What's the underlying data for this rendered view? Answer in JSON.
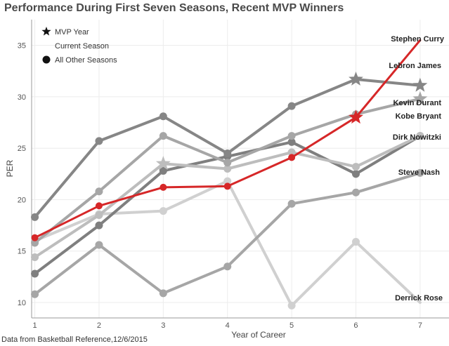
{
  "title": "Performance During First Seven Seasons, Recent MVP Winners",
  "source": "Data from Basketball Reference,12/6/2015",
  "chart_data": {
    "type": "line",
    "xlabel": "Year of Career",
    "ylabel": "PER",
    "x": [
      1,
      2,
      3,
      4,
      5,
      6,
      7
    ],
    "xlim": [
      0.95,
      7.45
    ],
    "ylim": [
      8.5,
      37.5
    ],
    "yticks": [
      10,
      15,
      20,
      25,
      30,
      35
    ],
    "grid": true,
    "legend_position": "top-left",
    "legend": [
      {
        "key": "mvp",
        "label": "MVP Year",
        "marker": "star"
      },
      {
        "key": "current",
        "label": "Current Season",
        "marker": "none"
      },
      {
        "key": "other",
        "label": "All Other Seasons",
        "marker": "circle"
      }
    ],
    "colors": {
      "highlight": "#d62728",
      "dark": "#7f7f7f",
      "mid": "#a6a6a6",
      "light": "#cfcfcf"
    },
    "series": [
      {
        "name": "Stephen Curry",
        "color": "#d62728",
        "values": [
          16.3,
          19.4,
          21.2,
          21.3,
          24.1,
          28.0,
          35.5
        ],
        "mvp": [
          6
        ],
        "current": [
          7
        ]
      },
      {
        "name": "Lebron James",
        "color": "#868686",
        "values": [
          18.3,
          25.7,
          28.1,
          24.5,
          29.1,
          31.7,
          31.1
        ],
        "mvp": [
          6,
          7
        ]
      },
      {
        "name": "Kevin Durant",
        "color": "#a6a6a6",
        "values": [
          15.8,
          20.8,
          26.2,
          23.6,
          26.2,
          28.3,
          29.8
        ],
        "mvp": [
          7
        ]
      },
      {
        "name": "Kobe Bryant",
        "color": "#bdbdbd",
        "values": [
          14.4,
          18.5,
          23.5,
          23.0,
          24.6,
          23.2,
          26.2
        ],
        "mvp": [
          3
        ]
      },
      {
        "name": "Dirk Nowitzki",
        "color": "#7f7f7f",
        "values": [
          12.8,
          17.5,
          22.8,
          24.2,
          25.6,
          22.5,
          26.2
        ],
        "mvp": []
      },
      {
        "name": "Steve Nash",
        "color": "#a6a6a6",
        "values": [
          10.8,
          15.6,
          10.9,
          13.5,
          19.6,
          20.7,
          22.6
        ],
        "mvp": []
      },
      {
        "name": "Derrick Rose",
        "color": "#d0d0d0",
        "values": [
          16.0,
          18.6,
          18.9,
          21.8,
          9.7,
          15.9,
          10.0
        ],
        "mvp": [],
        "current": [
          7
        ]
      }
    ],
    "series_labels": {
      "Stephen Curry": "Stephen Curry",
      "Lebron James": "Lebron James",
      "Kevin Durant": "Kevin Durant",
      "Kobe Bryant": "Kobe Bryant",
      "Dirk Nowitzki": "Dirk Nowitzki",
      "Steve Nash": "Steve Nash",
      "Derrick Rose": "Derrick Rose"
    }
  }
}
